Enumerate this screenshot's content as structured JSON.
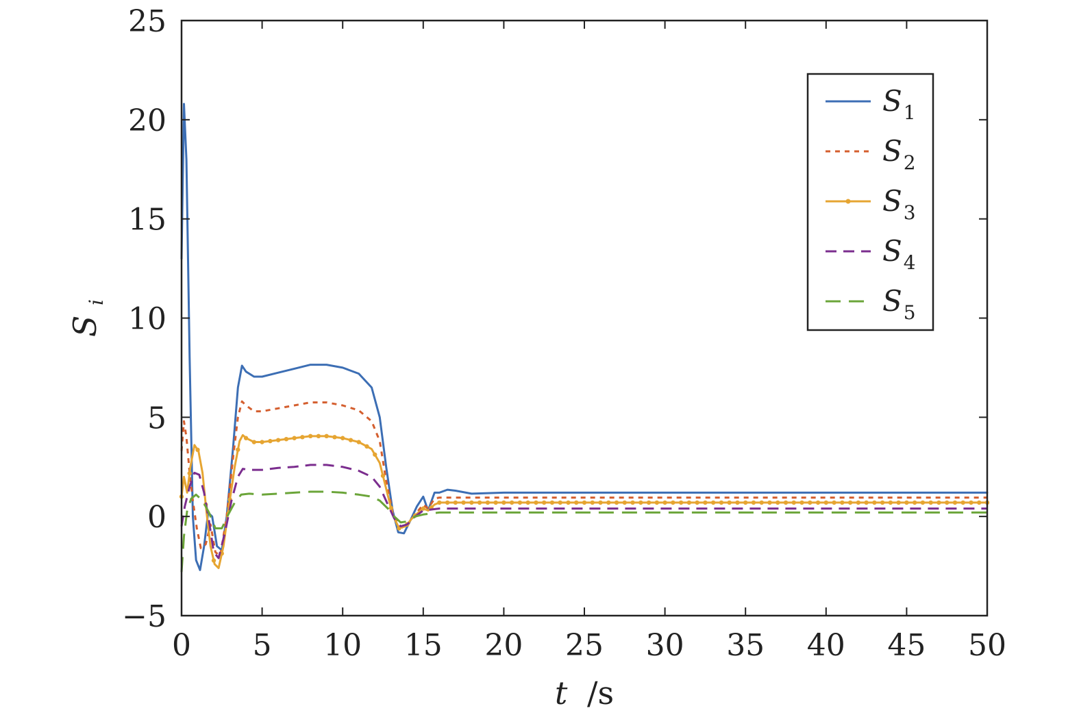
{
  "chart_data": {
    "type": "line",
    "xlabel": {
      "var": "t",
      "unit": "/s"
    },
    "ylabel": {
      "var": "S",
      "sub": "i"
    },
    "xlim": [
      0,
      50
    ],
    "ylim": [
      -5,
      25
    ],
    "xticks": [
      0,
      5,
      10,
      15,
      20,
      25,
      30,
      35,
      40,
      45,
      50
    ],
    "yticks": [
      -5,
      0,
      5,
      10,
      15,
      20,
      25
    ],
    "ytick_labels": [
      "−5",
      "0",
      "5",
      "10",
      "15",
      "20",
      "25"
    ],
    "grid": false,
    "legend_position": "top-right",
    "series": [
      {
        "name": "S",
        "sub": "1",
        "color": "#3C6EB4",
        "style": "solid",
        "points": [
          [
            0,
            13.0
          ],
          [
            0.15,
            20.8
          ],
          [
            0.3,
            18.0
          ],
          [
            0.5,
            8.0
          ],
          [
            0.7,
            0.0
          ],
          [
            0.9,
            -2.2
          ],
          [
            1.15,
            -2.7
          ],
          [
            1.4,
            -1.5
          ],
          [
            1.65,
            0.2
          ],
          [
            1.9,
            0.0
          ],
          [
            2.2,
            -1.5
          ],
          [
            2.5,
            -1.7
          ],
          [
            2.8,
            0.0
          ],
          [
            3.2,
            3.5
          ],
          [
            3.5,
            6.5
          ],
          [
            3.75,
            7.6
          ],
          [
            4.0,
            7.3
          ],
          [
            4.5,
            7.05
          ],
          [
            5,
            7.05
          ],
          [
            6,
            7.25
          ],
          [
            7,
            7.45
          ],
          [
            8,
            7.65
          ],
          [
            9,
            7.65
          ],
          [
            10,
            7.5
          ],
          [
            11,
            7.2
          ],
          [
            11.8,
            6.5
          ],
          [
            12.3,
            5.0
          ],
          [
            12.7,
            2.5
          ],
          [
            13.1,
            0.3
          ],
          [
            13.45,
            -0.8
          ],
          [
            13.8,
            -0.85
          ],
          [
            14.2,
            -0.2
          ],
          [
            14.6,
            0.5
          ],
          [
            15.0,
            1.0
          ],
          [
            15.3,
            0.3
          ],
          [
            15.7,
            1.2
          ],
          [
            16.0,
            1.2
          ],
          [
            16.5,
            1.35
          ],
          [
            17,
            1.3
          ],
          [
            18,
            1.15
          ],
          [
            20,
            1.2
          ],
          [
            30,
            1.2
          ],
          [
            40,
            1.2
          ],
          [
            50,
            1.2
          ]
        ]
      },
      {
        "name": "S",
        "sub": "2",
        "color": "#D45E2E",
        "style": "dotted",
        "points": [
          [
            0,
            3.3
          ],
          [
            0.15,
            4.8
          ],
          [
            0.3,
            4.0
          ],
          [
            0.5,
            2.2
          ],
          [
            0.7,
            0.8
          ],
          [
            0.95,
            -0.6
          ],
          [
            1.2,
            -1.6
          ],
          [
            1.5,
            -1.4
          ],
          [
            1.8,
            -0.4
          ],
          [
            2.1,
            -1.8
          ],
          [
            2.4,
            -2.0
          ],
          [
            2.8,
            0.0
          ],
          [
            3.2,
            3.0
          ],
          [
            3.5,
            5.0
          ],
          [
            3.75,
            5.8
          ],
          [
            4.0,
            5.6
          ],
          [
            4.5,
            5.3
          ],
          [
            5,
            5.3
          ],
          [
            6,
            5.45
          ],
          [
            7,
            5.6
          ],
          [
            8,
            5.75
          ],
          [
            9,
            5.75
          ],
          [
            10,
            5.6
          ],
          [
            11,
            5.35
          ],
          [
            11.8,
            4.8
          ],
          [
            12.3,
            3.8
          ],
          [
            12.7,
            1.8
          ],
          [
            13.1,
            0.2
          ],
          [
            13.5,
            -0.5
          ],
          [
            13.9,
            -0.6
          ],
          [
            14.3,
            -0.1
          ],
          [
            14.7,
            0.3
          ],
          [
            15.0,
            0.6
          ],
          [
            15.3,
            0.4
          ],
          [
            15.7,
            0.9
          ],
          [
            16,
            0.95
          ],
          [
            17,
            0.95
          ],
          [
            20,
            0.95
          ],
          [
            30,
            0.95
          ],
          [
            40,
            0.95
          ],
          [
            50,
            0.95
          ]
        ]
      },
      {
        "name": "S",
        "sub": "3",
        "color": "#E6A532",
        "style": "dots",
        "points": [
          [
            0,
            1.0
          ],
          [
            0.15,
            2.0
          ],
          [
            0.35,
            1.2
          ],
          [
            0.55,
            2.5
          ],
          [
            0.8,
            3.6
          ],
          [
            1.05,
            3.3
          ],
          [
            1.3,
            2.2
          ],
          [
            1.55,
            0.2
          ],
          [
            1.8,
            -1.5
          ],
          [
            2.05,
            -2.4
          ],
          [
            2.3,
            -2.6
          ],
          [
            2.6,
            -1.5
          ],
          [
            2.9,
            0.3
          ],
          [
            3.3,
            2.5
          ],
          [
            3.6,
            3.8
          ],
          [
            3.8,
            4.1
          ],
          [
            4.0,
            3.95
          ],
          [
            4.5,
            3.75
          ],
          [
            5,
            3.75
          ],
          [
            6,
            3.85
          ],
          [
            7,
            3.95
          ],
          [
            8,
            4.05
          ],
          [
            9,
            4.05
          ],
          [
            10,
            3.95
          ],
          [
            11,
            3.75
          ],
          [
            11.8,
            3.4
          ],
          [
            12.3,
            2.7
          ],
          [
            12.7,
            1.4
          ],
          [
            13.1,
            0.1
          ],
          [
            13.5,
            -0.6
          ],
          [
            13.9,
            -0.5
          ],
          [
            14.3,
            -0.1
          ],
          [
            14.7,
            0.2
          ],
          [
            15.0,
            0.4
          ],
          [
            15.3,
            0.3
          ],
          [
            15.7,
            0.6
          ],
          [
            16,
            0.7
          ],
          [
            17,
            0.7
          ],
          [
            20,
            0.7
          ],
          [
            30,
            0.7
          ],
          [
            40,
            0.7
          ],
          [
            50,
            0.7
          ]
        ]
      },
      {
        "name": "S",
        "sub": "4",
        "color": "#7B2D8E",
        "style": "dashdot",
        "points": [
          [
            0,
            -0.5
          ],
          [
            0.2,
            0.5
          ],
          [
            0.5,
            1.5
          ],
          [
            0.8,
            2.2
          ],
          [
            1.1,
            2.1
          ],
          [
            1.4,
            1.2
          ],
          [
            1.7,
            -0.2
          ],
          [
            2.0,
            -1.8
          ],
          [
            2.3,
            -2.1
          ],
          [
            2.7,
            -0.8
          ],
          [
            3.1,
            0.8
          ],
          [
            3.5,
            2.0
          ],
          [
            3.8,
            2.4
          ],
          [
            4.2,
            2.35
          ],
          [
            5,
            2.35
          ],
          [
            6,
            2.45
          ],
          [
            7,
            2.5
          ],
          [
            8,
            2.6
          ],
          [
            9,
            2.6
          ],
          [
            10,
            2.5
          ],
          [
            11,
            2.3
          ],
          [
            11.8,
            2.0
          ],
          [
            12.3,
            1.5
          ],
          [
            12.8,
            0.6
          ],
          [
            13.2,
            -0.1
          ],
          [
            13.6,
            -0.5
          ],
          [
            14.0,
            -0.4
          ],
          [
            14.5,
            0.0
          ],
          [
            15.0,
            0.3
          ],
          [
            15.5,
            0.35
          ],
          [
            16,
            0.4
          ],
          [
            17,
            0.4
          ],
          [
            20,
            0.4
          ],
          [
            30,
            0.4
          ],
          [
            40,
            0.4
          ],
          [
            50,
            0.4
          ]
        ]
      },
      {
        "name": "S",
        "sub": "5",
        "color": "#6BA539",
        "style": "dashed",
        "points": [
          [
            0,
            -2.8
          ],
          [
            0.15,
            -1.0
          ],
          [
            0.35,
            0.3
          ],
          [
            0.6,
            0.9
          ],
          [
            0.9,
            1.1
          ],
          [
            1.3,
            0.8
          ],
          [
            1.7,
            0.2
          ],
          [
            2.1,
            -0.6
          ],
          [
            2.5,
            -0.6
          ],
          [
            2.9,
            0.1
          ],
          [
            3.3,
            0.7
          ],
          [
            3.7,
            1.1
          ],
          [
            4.2,
            1.15
          ],
          [
            5,
            1.1
          ],
          [
            6,
            1.15
          ],
          [
            7,
            1.2
          ],
          [
            8,
            1.25
          ],
          [
            9,
            1.25
          ],
          [
            10,
            1.2
          ],
          [
            11,
            1.1
          ],
          [
            11.8,
            1.0
          ],
          [
            12.3,
            0.8
          ],
          [
            12.8,
            0.4
          ],
          [
            13.2,
            0.0
          ],
          [
            13.6,
            -0.3
          ],
          [
            14.0,
            -0.25
          ],
          [
            14.5,
            0.0
          ],
          [
            15.0,
            0.1
          ],
          [
            15.5,
            0.15
          ],
          [
            16,
            0.2
          ],
          [
            17,
            0.2
          ],
          [
            20,
            0.2
          ],
          [
            30,
            0.2
          ],
          [
            40,
            0.2
          ],
          [
            50,
            0.2
          ]
        ]
      }
    ]
  }
}
